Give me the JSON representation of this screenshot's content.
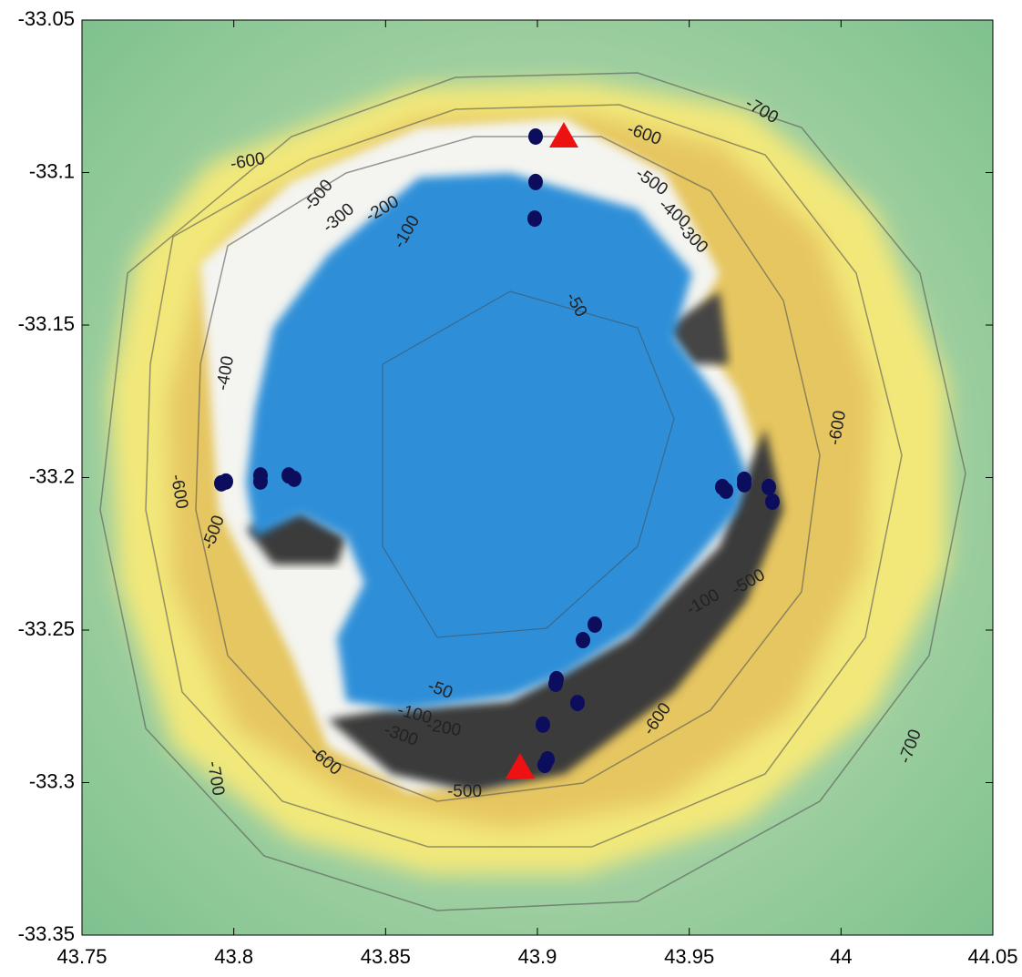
{
  "chart_data": {
    "type": "scatter",
    "xlim": [
      43.75,
      44.05
    ],
    "xticks": [
      43.75,
      43.8,
      43.85,
      43.9,
      43.95,
      44,
      44.05
    ],
    "ylim": [
      -33.35,
      -33.05
    ],
    "yticks": [
      -33.35,
      -33.3,
      -33.25,
      -33.2,
      -33.15,
      -33.1,
      -33.05
    ],
    "series": [
      {
        "color": "#0d0d5e",
        "marker": "circle",
        "x": [
          43.8994,
          43.8994,
          43.8991,
          43.7959,
          43.7974,
          43.8088,
          43.8088,
          43.8181,
          43.8199,
          43.9609,
          43.9621,
          43.9681,
          43.9681,
          43.9762,
          43.9774,
          43.9189,
          43.915,
          43.9063,
          43.906,
          43.9132,
          43.9018,
          43.9033,
          43.9024
        ],
        "y": [
          -33.0882,
          -33.1031,
          -33.1151,
          -33.2019,
          -33.2013,
          -33.1993,
          -33.2013,
          -33.1993,
          -33.2004,
          -33.2031,
          -33.2043,
          -33.2007,
          -33.2022,
          -33.2031,
          -33.2079,
          -33.2482,
          -33.2533,
          -33.2661,
          -33.2676,
          -33.2739,
          -33.281,
          -33.2924,
          -33.2942
        ]
      },
      {
        "color": "#ee1111",
        "marker": "triangle",
        "x": [
          43.9087,
          43.8943
        ],
        "y": [
          -33.0882,
          -33.2951
        ]
      }
    ],
    "contour_labels": [
      "-700",
      "-600",
      "-500",
      "-400",
      "-300",
      "-600",
      "-500",
      "-300",
      "-200",
      "-100",
      "-50",
      "-400",
      "-600",
      "-600",
      "-500",
      "-100",
      "-500",
      "-50",
      "-100",
      "-200",
      "-300",
      "-600",
      "-600",
      "-700",
      "-700",
      "-500"
    ]
  }
}
